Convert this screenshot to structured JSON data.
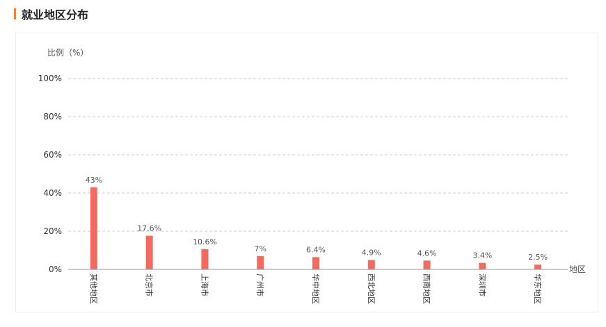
{
  "section": {
    "title": "就业地区分布"
  },
  "colors": {
    "accent": "#ff7a33",
    "bar": "#f46a5e",
    "grid": "#cccccc",
    "axis": "#999999"
  },
  "chart_data": {
    "type": "bar",
    "title": "",
    "ylabel": "比例（%）",
    "xlabel": "地区",
    "ylim": [
      0,
      100
    ],
    "yticks": [
      "0%",
      "20%",
      "40%",
      "60%",
      "80%",
      "100%"
    ],
    "ytick_values": [
      0,
      20,
      40,
      60,
      80,
      100
    ],
    "grid": true,
    "categories": [
      "其他地区",
      "北京市",
      "上海市",
      "广州市",
      "华中地区",
      "西北地区",
      "西南地区",
      "深圳市",
      "华东地区"
    ],
    "values": [
      43,
      17.6,
      10.6,
      7,
      6.4,
      4.9,
      4.6,
      3.4,
      2.5
    ],
    "value_labels": [
      "43%",
      "17.6%",
      "10.6%",
      "7%",
      "6.4%",
      "4.9%",
      "4.6%",
      "3.4%",
      "2.5%"
    ]
  }
}
